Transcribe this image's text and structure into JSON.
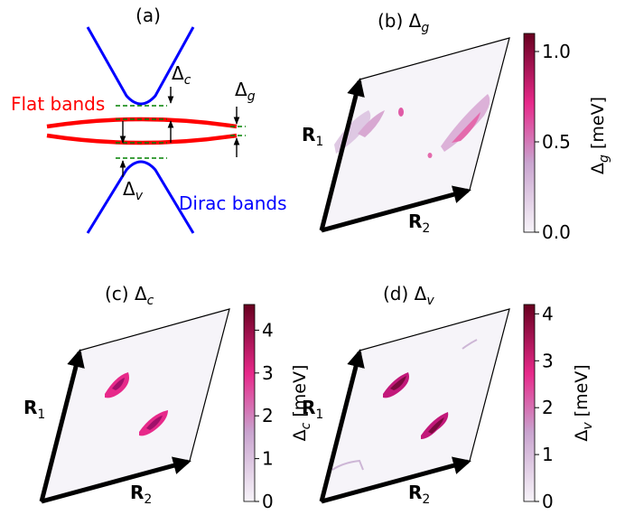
{
  "panel_a": {
    "title": "(a)",
    "flat_bands": "Flat bands",
    "dirac_bands": "Dirac bands",
    "delta_c": "Δ",
    "delta_c_sub": "c",
    "delta_g": "Δ",
    "delta_g_sub": "g",
    "delta_v": "Δ",
    "delta_v_sub": "v",
    "colors": {
      "flat": "#ff0000",
      "dirac": "#0000ff",
      "guide": "#008000"
    }
  },
  "panel_b": {
    "title": "(b)  Δ",
    "title_sub": "g",
    "r1": "R",
    "r1_sub": "1",
    "r2": "R",
    "r2_sub": "2",
    "colorbar": {
      "label": "Δ",
      "label_sub": "g",
      "label_unit": " [meV]",
      "ticks": [
        "0.0",
        "0.5",
        "1.0"
      ],
      "tick_values": [
        0.0,
        0.5,
        1.0
      ],
      "max": 1.1
    }
  },
  "panel_c": {
    "title": "(c)  Δ",
    "title_sub": "c",
    "r1": "R",
    "r1_sub": "1",
    "r2": "R",
    "r2_sub": "2",
    "colorbar": {
      "label": "Δ",
      "label_sub": "c",
      "label_unit": " [meV]",
      "ticks": [
        "0",
        "1",
        "2",
        "3",
        "4"
      ],
      "tick_values": [
        0,
        1,
        2,
        3,
        4
      ],
      "max": 4.6
    }
  },
  "panel_d": {
    "title": "(d)  Δ",
    "title_sub": "v",
    "r1": "R",
    "r1_sub": "1",
    "r2": "R",
    "r2_sub": "2",
    "colorbar": {
      "label": "Δ",
      "label_sub": "v",
      "label_unit": " [meV]",
      "ticks": [
        "0",
        "1",
        "2",
        "3",
        "4"
      ],
      "tick_values": [
        0,
        1,
        2,
        3,
        4
      ],
      "max": 4.2
    }
  },
  "colormap": {
    "low": "#f7f4f9",
    "mid": "#e7298a",
    "high": "#67001f"
  }
}
